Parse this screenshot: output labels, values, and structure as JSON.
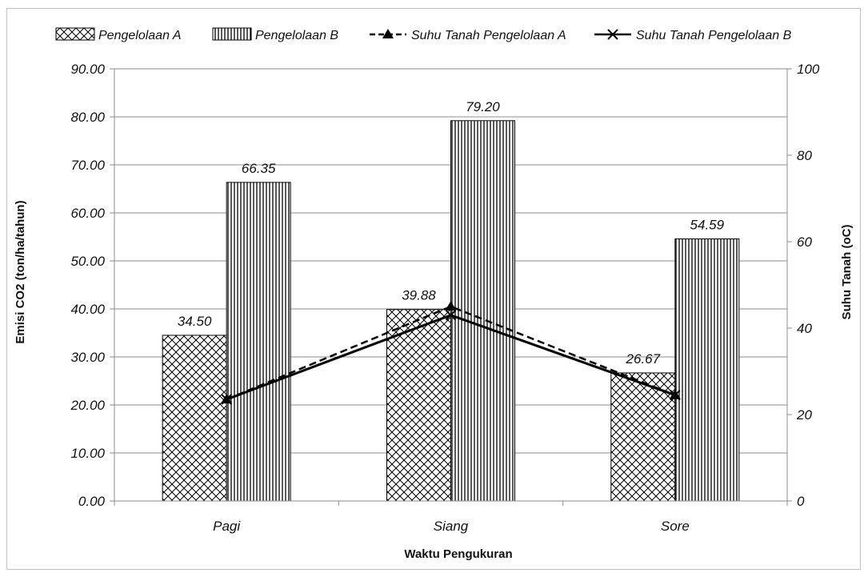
{
  "chart_data": {
    "type": "bar",
    "categories": [
      "Pagi",
      "Siang",
      "Sore"
    ],
    "category_labels": [
      "Pagi",
      "Siang",
      "Sore"
    ],
    "series": [
      {
        "name": "Pengelolaan A",
        "type": "bar",
        "axis": "left",
        "pattern": "crosshatch",
        "values": [
          34.5,
          39.88,
          26.67
        ]
      },
      {
        "name": "Pengelolaan B",
        "type": "bar",
        "axis": "left",
        "pattern": "vertical-lines",
        "values": [
          66.35,
          79.2,
          54.59
        ]
      },
      {
        "name": "Suhu Tanah Pengelolaan A",
        "type": "line",
        "axis": "right",
        "style": "dashed",
        "marker": "triangle",
        "values": [
          23.5,
          45,
          24.5
        ]
      },
      {
        "name": "Suhu Tanah Pengelolaan B",
        "type": "line",
        "axis": "right",
        "style": "solid",
        "marker": "x",
        "values": [
          23.5,
          43,
          24.5
        ]
      }
    ],
    "data_labels": {
      "Pengelolaan A": [
        "34.50",
        "39.88",
        "26.67"
      ],
      "Pengelolaan B": [
        "66.35",
        "79.20",
        "54.59"
      ]
    },
    "legend_labels": [
      "Pengelolaan A",
      "Pengelolaan B",
      "Suhu Tanah Pengelolaan A",
      "Suhu Tanah Pengelolaan B"
    ],
    "xlabel": "Waktu Pengukuran",
    "ylabel": "Emisi CO2 (ton/ha/tahun)",
    "y2label": "Suhu Tanah (oC)",
    "ylim": [
      0,
      90
    ],
    "y2lim": [
      0,
      100
    ],
    "yticks": [
      "0.00",
      "10.00",
      "20.00",
      "30.00",
      "40.00",
      "50.00",
      "60.00",
      "70.00",
      "80.00",
      "90.00"
    ],
    "y2ticks": [
      "0",
      "20",
      "40",
      "60",
      "80",
      "100"
    ],
    "grid": true,
    "legend_position": "top"
  }
}
